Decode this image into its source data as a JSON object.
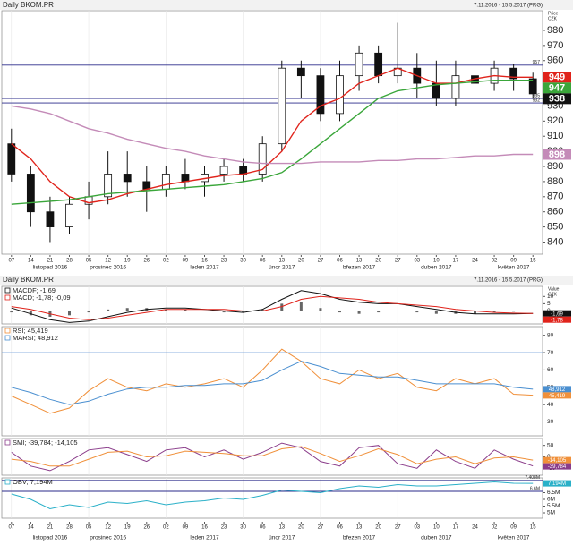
{
  "chart_data": [
    {
      "type": "candlestick",
      "title": "Daily BKOM.PR",
      "date_range": "7.11.2016 - 15.5.2017 (PRG)",
      "y_label": "Price",
      "y_unit": "CZK",
      "categories": [
        "07",
        "14",
        "21",
        "28",
        "05",
        "12",
        "19",
        "26",
        "02",
        "09",
        "16",
        "23",
        "30",
        "06",
        "13",
        "20",
        "27",
        "06",
        "13",
        "20",
        "27",
        "03",
        "10",
        "17",
        "24",
        "02",
        "09",
        "15"
      ],
      "month_labels": [
        null,
        null,
        "listopad 2016",
        null,
        null,
        "prosinec 2016",
        null,
        null,
        null,
        null,
        "leden 2017",
        null,
        null,
        null,
        "únor 2017",
        null,
        null,
        null,
        "březen 2017",
        null,
        null,
        null,
        "duben 2017",
        null,
        null,
        null,
        "květen 2017",
        null
      ],
      "candles": {
        "color": "#111111",
        "open": [
          905,
          885,
          860,
          850,
          865,
          870,
          885,
          880,
          875,
          885,
          880,
          885,
          890,
          885,
          905,
          955,
          950,
          925,
          950,
          965,
          950,
          955,
          945,
          935,
          950,
          945,
          955,
          948
        ],
        "high": [
          915,
          890,
          870,
          870,
          880,
          900,
          900,
          890,
          890,
          895,
          890,
          895,
          895,
          910,
          960,
          960,
          955,
          960,
          970,
          970,
          985,
          965,
          960,
          960,
          955,
          960,
          958,
          952
        ],
        "low": [
          880,
          850,
          840,
          845,
          855,
          865,
          870,
          860,
          870,
          875,
          870,
          880,
          880,
          880,
          900,
          935,
          920,
          920,
          940,
          945,
          945,
          935,
          930,
          930,
          935,
          940,
          940,
          935
        ],
        "close": [
          885,
          860,
          850,
          865,
          870,
          885,
          880,
          875,
          885,
          880,
          885,
          890,
          885,
          905,
          955,
          950,
          925,
          950,
          965,
          950,
          955,
          945,
          935,
          950,
          945,
          955,
          948,
          938
        ]
      },
      "series": [
        {
          "color": "#e0231b",
          "values": [
            905,
            895,
            880,
            870,
            866,
            868,
            872,
            875,
            878,
            880,
            882,
            884,
            885,
            888,
            900,
            920,
            930,
            935,
            945,
            950,
            955,
            950,
            945,
            945,
            948,
            950,
            949,
            949
          ]
        },
        {
          "color": "#3aa63a",
          "values": [
            865,
            866,
            867,
            868,
            870,
            872,
            873,
            874,
            875,
            876,
            877,
            878,
            880,
            882,
            886,
            895,
            905,
            915,
            925,
            935,
            940,
            942,
            944,
            945,
            946,
            947,
            947,
            947
          ]
        },
        {
          "color": "#c48bb8",
          "values": [
            930,
            928,
            925,
            920,
            915,
            912,
            908,
            905,
            902,
            900,
            897,
            895,
            893,
            892,
            892,
            892,
            893,
            893,
            893,
            894,
            894,
            895,
            895,
            896,
            897,
            897,
            898,
            898
          ]
        }
      ],
      "hlines": [
        957,
        935,
        932
      ],
      "hline_color": "#2a2a8a",
      "hline_labels": true,
      "ylim": [
        832,
        993
      ],
      "yticks": [
        840,
        850,
        860,
        870,
        880,
        890,
        900,
        910,
        920,
        930,
        940,
        950,
        960,
        970,
        980
      ]
    },
    {
      "type": "line",
      "title": "Daily BKOM.PR",
      "legend": [
        "MACDF; -1,69",
        "MACD; -1,78; -0,09"
      ],
      "y_label": "Value",
      "y_unit": "CZK",
      "histogram": {
        "color": "#666666",
        "values": [
          -1,
          -3,
          -4,
          -3,
          -1,
          1,
          2,
          2,
          1,
          1,
          0,
          -1,
          -1,
          1,
          5,
          6,
          2,
          -1,
          -2,
          -1,
          0,
          -1,
          -2,
          -2,
          -2,
          -1,
          -0.5,
          -0.09
        ]
      },
      "series": [
        {
          "color": "#111111",
          "values": [
            2,
            -2,
            -6,
            -8,
            -7,
            -4,
            -1,
            1,
            2,
            2,
            1,
            0,
            -1,
            1,
            8,
            14,
            12,
            8,
            6,
            5,
            5,
            3,
            1,
            -1,
            -2,
            -2,
            -2,
            -1.69
          ],
          "value_labels": [
            null,
            null,
            null,
            null,
            null,
            null,
            null,
            null,
            null,
            null,
            null,
            null,
            null,
            null,
            null,
            null,
            null,
            null,
            null,
            null,
            null,
            null,
            null,
            null,
            null,
            null,
            null,
            "-1,69"
          ]
        },
        {
          "color": "#e0231b",
          "values": [
            3,
            1,
            -2,
            -5,
            -6,
            -5,
            -3,
            -1,
            1,
            1,
            1,
            1,
            0,
            0,
            3,
            8,
            10,
            9,
            8,
            6,
            5,
            4,
            3,
            1,
            0,
            -1,
            -1.5,
            -1.78
          ],
          "value_labels": [
            null,
            null,
            null,
            null,
            null,
            null,
            null,
            null,
            null,
            null,
            null,
            null,
            null,
            null,
            null,
            null,
            null,
            null,
            null,
            null,
            null,
            null,
            null,
            null,
            null,
            null,
            null,
            "-1,78"
          ]
        }
      ],
      "hlines": [
        0
      ],
      "hline_color": "#333333",
      "hline_labels": false,
      "ylim": [
        -9,
        17
      ],
      "yticks": [
        -5,
        0,
        5,
        10
      ]
    },
    {
      "type": "line",
      "legend": [
        "RSI; 45,419",
        "MARSI; 48,912"
      ],
      "series": [
        {
          "color": "#f0903a",
          "values": [
            45,
            40,
            35,
            38,
            48,
            55,
            50,
            48,
            52,
            50,
            52,
            55,
            50,
            60,
            72,
            65,
            55,
            52,
            60,
            55,
            58,
            50,
            48,
            55,
            52,
            55,
            46,
            45.419
          ],
          "value_labels": [
            null,
            null,
            null,
            null,
            null,
            null,
            null,
            null,
            null,
            null,
            null,
            null,
            null,
            null,
            null,
            null,
            null,
            null,
            null,
            null,
            null,
            null,
            null,
            null,
            null,
            null,
            null,
            "45,419"
          ]
        },
        {
          "color": "#4a8fd0",
          "values": [
            50,
            47,
            43,
            40,
            42,
            46,
            49,
            50,
            50,
            51,
            51,
            52,
            52,
            54,
            60,
            65,
            62,
            58,
            57,
            56,
            56,
            54,
            52,
            52,
            52,
            52,
            50,
            48.912
          ],
          "value_labels": [
            null,
            null,
            null,
            null,
            null,
            null,
            null,
            null,
            null,
            null,
            null,
            null,
            null,
            null,
            null,
            null,
            null,
            null,
            null,
            null,
            null,
            null,
            null,
            null,
            null,
            null,
            null,
            "48,912"
          ]
        }
      ],
      "hlines": [
        70,
        30
      ],
      "hline_color": "#6a9ad8",
      "hline_labels": false,
      "ylim": [
        22,
        85
      ],
      "yticks": [
        30,
        40,
        50,
        60,
        70,
        80
      ]
    },
    {
      "type": "line",
      "legend": [
        "SMI; -39,784; -14,105"
      ],
      "series": [
        {
          "color": "#8a3c8a",
          "values": [
            20,
            -40,
            -60,
            -20,
            30,
            40,
            10,
            -20,
            30,
            40,
            0,
            30,
            -10,
            20,
            60,
            40,
            -20,
            -40,
            40,
            50,
            -30,
            -50,
            30,
            -20,
            -50,
            30,
            -10,
            -39.784
          ],
          "value_labels": [
            null,
            null,
            null,
            null,
            null,
            null,
            null,
            null,
            null,
            null,
            null,
            null,
            null,
            null,
            null,
            null,
            null,
            null,
            null,
            null,
            null,
            null,
            null,
            null,
            null,
            null,
            null,
            "-39,784"
          ]
        },
        {
          "color": "#f0903a",
          "values": [
            -10,
            -20,
            -40,
            -40,
            -10,
            20,
            25,
            0,
            5,
            25,
            20,
            15,
            5,
            5,
            35,
            45,
            15,
            -20,
            5,
            35,
            10,
            -30,
            -10,
            0,
            -30,
            -5,
            0,
            -14.105
          ],
          "value_labels": [
            null,
            null,
            null,
            null,
            null,
            null,
            null,
            null,
            null,
            null,
            null,
            null,
            null,
            null,
            null,
            null,
            null,
            null,
            null,
            null,
            null,
            null,
            null,
            null,
            null,
            null,
            null,
            "-14,105"
          ]
        }
      ],
      "hlines": [],
      "hline_color": "#333333",
      "hline_labels": false,
      "ylim": [
        -80,
        80
      ],
      "yticks": [
        -50,
        0,
        50
      ]
    },
    {
      "type": "line",
      "legend": [
        "OBV; 7,194M"
      ],
      "series": [
        {
          "color": "#2ab0c8",
          "values": [
            6.4,
            6.0,
            5.3,
            5.6,
            5.4,
            5.8,
            5.7,
            5.9,
            5.6,
            5.8,
            5.9,
            6.1,
            6.0,
            6.3,
            6.7,
            6.6,
            6.5,
            6.8,
            7.0,
            6.9,
            7.1,
            7.0,
            7.0,
            7.1,
            7.2,
            7.3,
            7.2,
            7.194
          ],
          "value_labels": [
            null,
            null,
            null,
            null,
            null,
            null,
            null,
            null,
            null,
            null,
            null,
            null,
            null,
            null,
            null,
            null,
            null,
            null,
            null,
            null,
            null,
            null,
            null,
            null,
            null,
            null,
            null,
            "7,194M"
          ]
        }
      ],
      "hlines": [
        {
          "value": 7.408,
          "label": "7.408M"
        },
        {
          "value": 6.6,
          "label": "6.6M"
        }
      ],
      "hline_color": "#2a2a8a",
      "hline_labels": true,
      "ylim": [
        4.6,
        7.6
      ],
      "yticks": [
        {
          "value": 5,
          "label": "5M"
        },
        {
          "value": 5.5,
          "label": "5.5M"
        },
        {
          "value": 6,
          "label": "6M"
        },
        {
          "value": 6.5,
          "label": "6.5M"
        }
      ]
    }
  ]
}
